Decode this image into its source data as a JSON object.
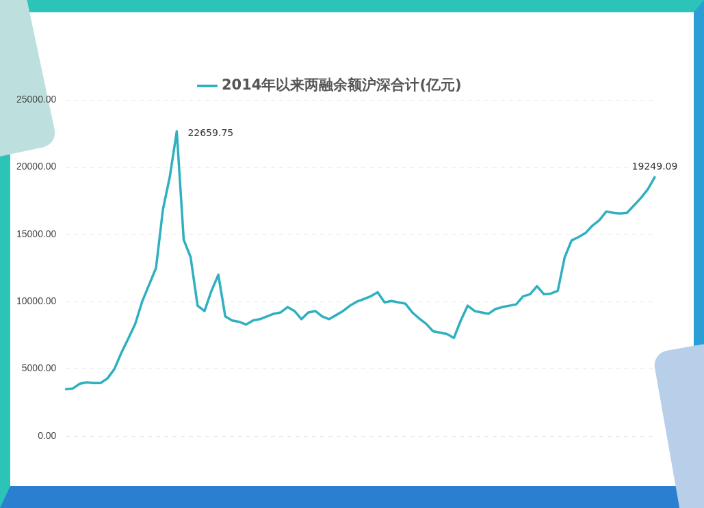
{
  "chart_data": {
    "type": "line",
    "categories": [
      null,
      null,
      null,
      null,
      null,
      null,
      null,
      null,
      null,
      null,
      null,
      null,
      null,
      null,
      null,
      null,
      null,
      null,
      null,
      null,
      null,
      null,
      null,
      null,
      null,
      null,
      null,
      null,
      null,
      null,
      null,
      null,
      null,
      null,
      null,
      null,
      null,
      null,
      null,
      null,
      null,
      null,
      null,
      null,
      null,
      null,
      null,
      null,
      null,
      null,
      null,
      null,
      null,
      null,
      null,
      null,
      null,
      null,
      null,
      null,
      null,
      null,
      null,
      null,
      null,
      null,
      null,
      null,
      null,
      null,
      null,
      null,
      null,
      null,
      null,
      null,
      null,
      null,
      null,
      null,
      null,
      null,
      null,
      null,
      null,
      null
    ],
    "series": [
      {
        "name": "2014年以来两融余额沪深合计(亿元)",
        "color": "#2fb0c0",
        "values": [
          3500,
          3550,
          3900,
          4000,
          3950,
          3950,
          4300,
          5000,
          6200,
          7250,
          8350,
          10000,
          11250,
          12500,
          16850,
          19300,
          22659.75,
          14600,
          13300,
          9700,
          9300,
          10800,
          12000,
          8900,
          8600,
          8500,
          8300,
          8600,
          8700,
          8900,
          9100,
          9200,
          9600,
          9300,
          8700,
          9200,
          9300,
          8900,
          8700,
          9000,
          9300,
          9700,
          10000,
          10200,
          10400,
          10700,
          9950,
          10050,
          9950,
          9850,
          9200,
          8750,
          8350,
          7800,
          7700,
          7600,
          7300,
          8600,
          9700,
          9300,
          9200,
          9100,
          9450,
          9600,
          9700,
          9800,
          10400,
          10550,
          11150,
          10550,
          10600,
          10800,
          13300,
          14550,
          14800,
          15100,
          15650,
          16050,
          16700,
          16600,
          16550,
          16600,
          17150,
          17700,
          18350,
          19249.09
        ],
        "value_labels": [
          null,
          null,
          null,
          null,
          null,
          null,
          null,
          null,
          null,
          null,
          null,
          null,
          null,
          null,
          null,
          null,
          "22659.75",
          null,
          null,
          null,
          null,
          null,
          null,
          null,
          null,
          null,
          null,
          null,
          null,
          null,
          null,
          null,
          null,
          null,
          null,
          null,
          null,
          null,
          null,
          null,
          null,
          null,
          null,
          null,
          null,
          null,
          null,
          null,
          null,
          null,
          null,
          null,
          null,
          null,
          null,
          null,
          null,
          null,
          null,
          null,
          null,
          null,
          null,
          null,
          null,
          null,
          null,
          null,
          null,
          null,
          null,
          null,
          null,
          null,
          null,
          null,
          null,
          null,
          null,
          null,
          null,
          null,
          null,
          null,
          null,
          "19249.09"
        ]
      }
    ],
    "ylim": [
      0,
      25000
    ],
    "yticks": [
      {
        "value": 0,
        "label": "0.00"
      },
      {
        "value": 5000,
        "label": "5000.00"
      },
      {
        "value": 10000,
        "label": "10000.00"
      },
      {
        "value": 15000,
        "label": "15000.00"
      },
      {
        "value": 20000,
        "label": "20000.00"
      },
      {
        "value": 25000,
        "label": "25000.00"
      }
    ],
    "grid": "y",
    "legend": "top",
    "marker": "none",
    "line_style": "solid",
    "tick_labels": "y"
  }
}
